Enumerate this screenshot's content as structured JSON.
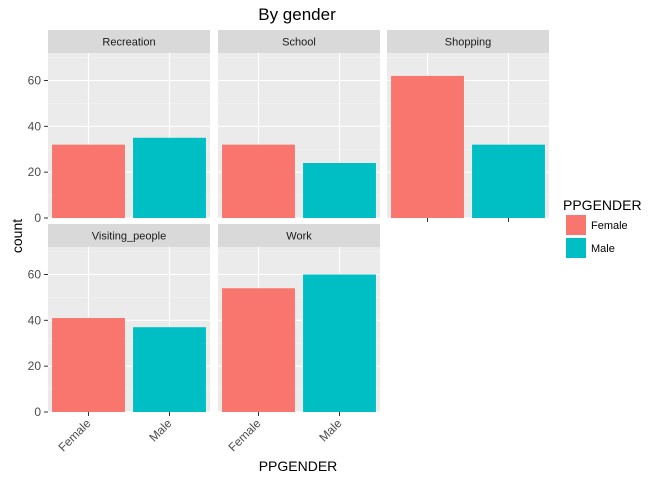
{
  "chart_data": {
    "type": "bar",
    "title": "By gender",
    "xlabel": "PPGENDER",
    "ylabel": "count",
    "categories": [
      "Female",
      "Male"
    ],
    "ylim": [
      0,
      72
    ],
    "yticks": [
      0,
      20,
      40,
      60
    ],
    "grid": true,
    "legend": {
      "title": "PPGENDER",
      "position": "right",
      "items": [
        {
          "label": "Female",
          "color": "#F8766D"
        },
        {
          "label": "Male",
          "color": "#00BFC4"
        }
      ]
    },
    "facets": [
      {
        "name": "Recreation",
        "values": [
          32,
          35
        ]
      },
      {
        "name": "School",
        "values": [
          32,
          24
        ]
      },
      {
        "name": "Shopping",
        "values": [
          62,
          32
        ]
      },
      {
        "name": "Visiting_people",
        "values": [
          41,
          37
        ]
      },
      {
        "name": "Work",
        "values": [
          54,
          60
        ]
      }
    ]
  },
  "colors": {
    "panel_background": "#EBEBEB",
    "strip_background": "#D9D9D9",
    "grid_major": "#FFFFFF",
    "female": "#F8766D",
    "male": "#00BFC4"
  }
}
